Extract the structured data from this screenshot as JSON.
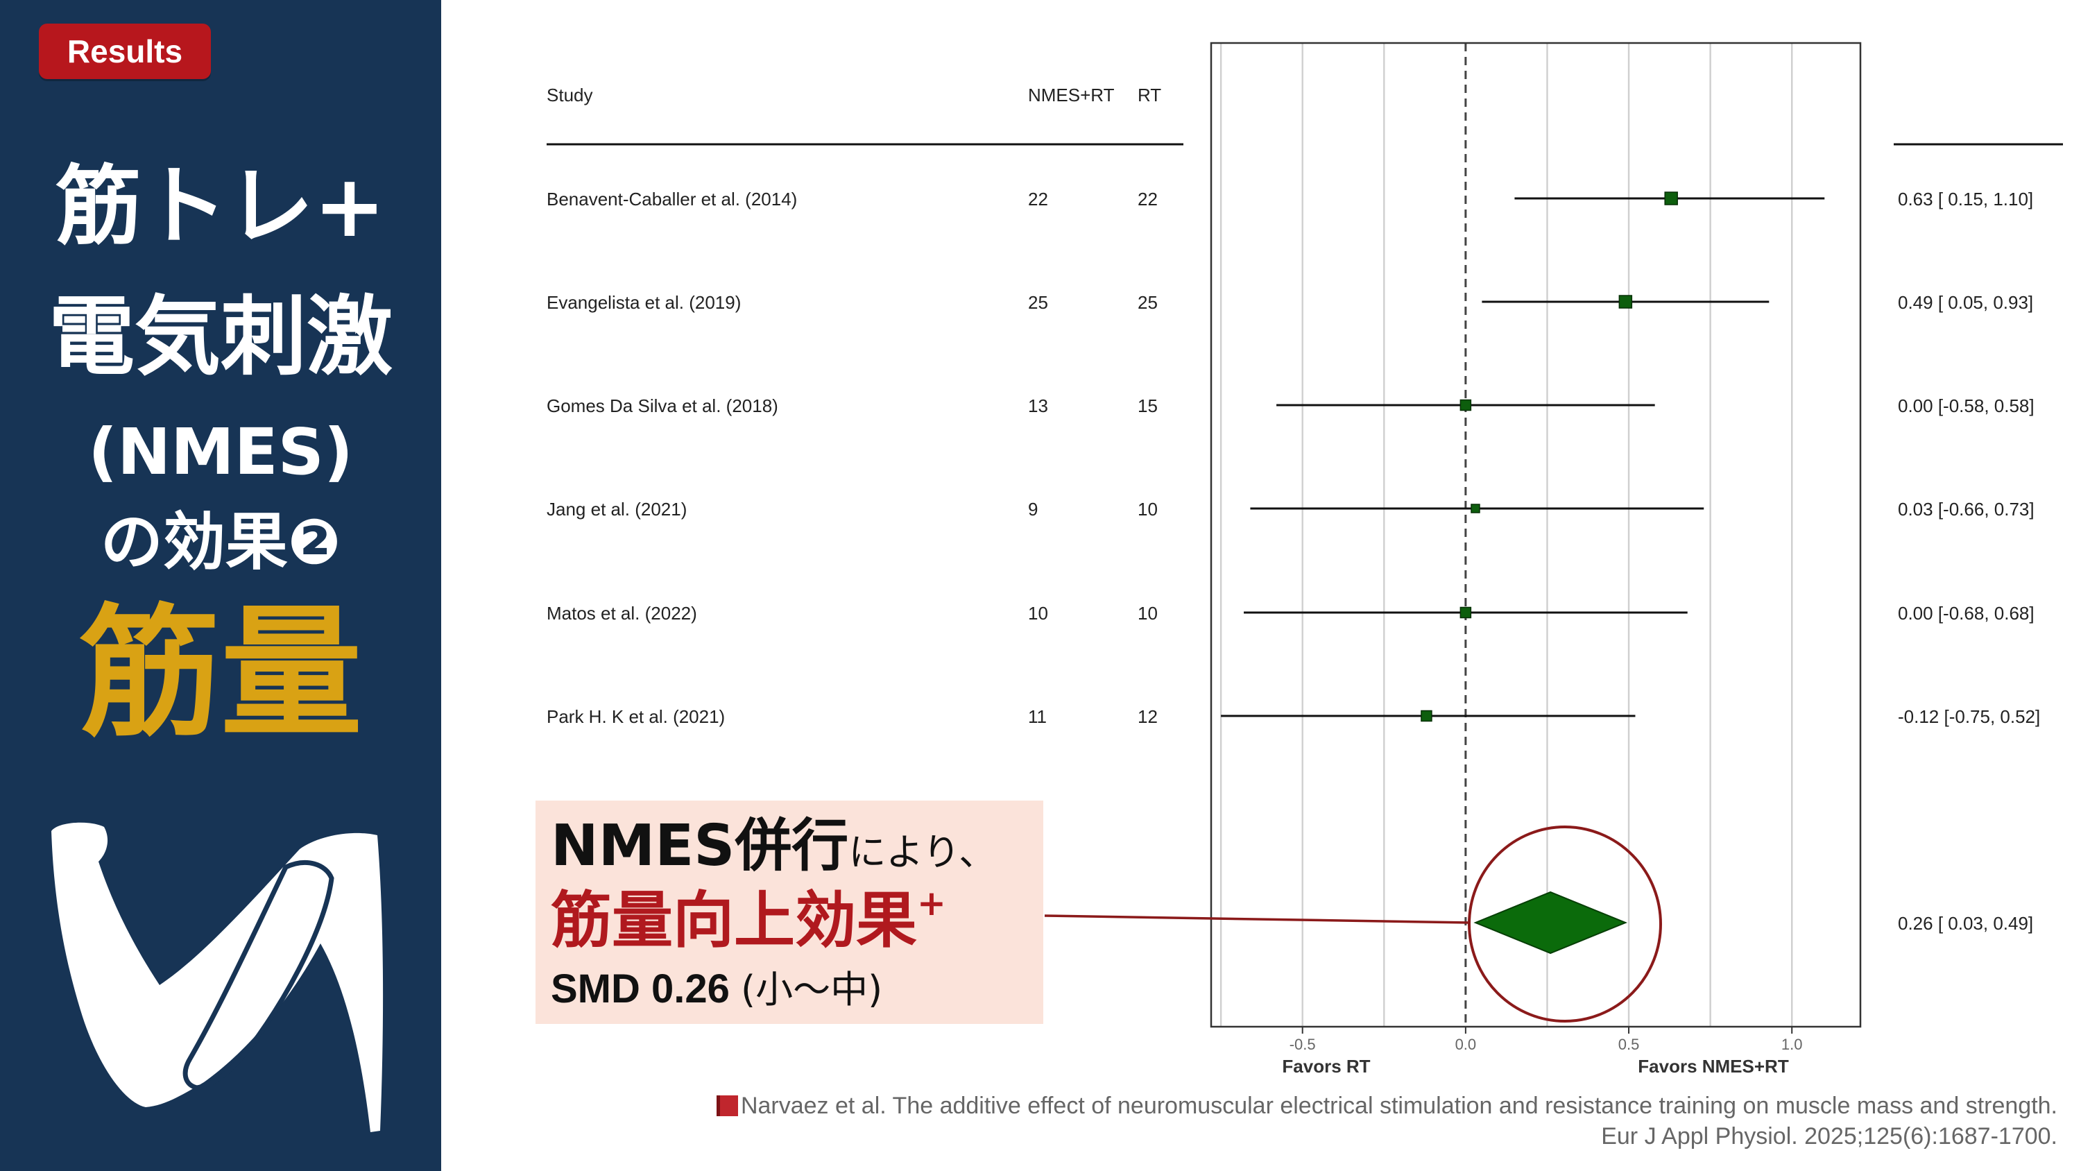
{
  "badge": "Results",
  "sidebar": {
    "line1": "筋トレ+",
    "line2": "電気刺激",
    "line3": "(NMES)",
    "line4": "の効果❷",
    "line5": "筋量"
  },
  "table_headers": {
    "study": "Study",
    "nmes": "NMES+RT",
    "rt": "RT"
  },
  "chart_data": {
    "type": "forest",
    "xlim": [
      -0.78,
      1.21
    ],
    "ticks": [
      {
        "value": -0.5,
        "label": "-0.5"
      },
      {
        "value": 0.0,
        "label": "0.0"
      },
      {
        "value": 0.5,
        "label": "0.5"
      },
      {
        "value": 1.0,
        "label": "1.0"
      }
    ],
    "xlabel_left": "Favors RT",
    "xlabel_right": "Favors NMES+RT",
    "studies": [
      {
        "name": "Benavent-Caballer et al. (2014)",
        "nmes": "22",
        "rt": "22",
        "smd": 0.63,
        "lo": 0.15,
        "hi": 1.1,
        "label": "0.63 [ 0.15, 1.10]"
      },
      {
        "name": "Evangelista et al. (2019)",
        "nmes": "25",
        "rt": "25",
        "smd": 0.49,
        "lo": 0.05,
        "hi": 0.93,
        "label": "0.49 [ 0.05, 0.93]"
      },
      {
        "name": "Gomes Da Silva et al. (2018)",
        "nmes": "13",
        "rt": "15",
        "smd": 0.0,
        "lo": -0.58,
        "hi": 0.58,
        "label": "0.00 [-0.58, 0.58]"
      },
      {
        "name": "Jang et al. (2021)",
        "nmes": "9",
        "rt": "10",
        "smd": 0.03,
        "lo": -0.66,
        "hi": 0.73,
        "label": "0.03 [-0.66, 0.73]"
      },
      {
        "name": "Matos et al. (2022)",
        "nmes": "10",
        "rt": "10",
        "smd": 0.0,
        "lo": -0.68,
        "hi": 0.68,
        "label": "0.00 [-0.68, 0.68]"
      },
      {
        "name": "Park H. K et al. (2021)",
        "nmes": "11",
        "rt": "12",
        "smd": -0.12,
        "lo": -0.75,
        "hi": 0.52,
        "label": "-0.12 [-0.75, 0.52]"
      }
    ],
    "summary": {
      "smd": 0.26,
      "lo": 0.03,
      "hi": 0.49,
      "label": "0.26 [ 0.03, 0.49]"
    },
    "colors": {
      "marker": "#0d5e0d",
      "summary": "#0b6b0b",
      "highlight": "#8b1a1a"
    }
  },
  "callout": {
    "line1_bold": "NMES併行",
    "line1_small": "により、",
    "line2": "筋量向上効果",
    "line2_sup": "+",
    "line3_bold": "SMD 0.26 ",
    "line3_paren": "(小〜中)"
  },
  "citation": {
    "line1": "Narvaez et al. The additive effect of neuromuscular electrical stimulation and resistance training on muscle mass and strength.",
    "line2": "Eur J Appl Physiol. 2025;125(6):1687-1700."
  }
}
